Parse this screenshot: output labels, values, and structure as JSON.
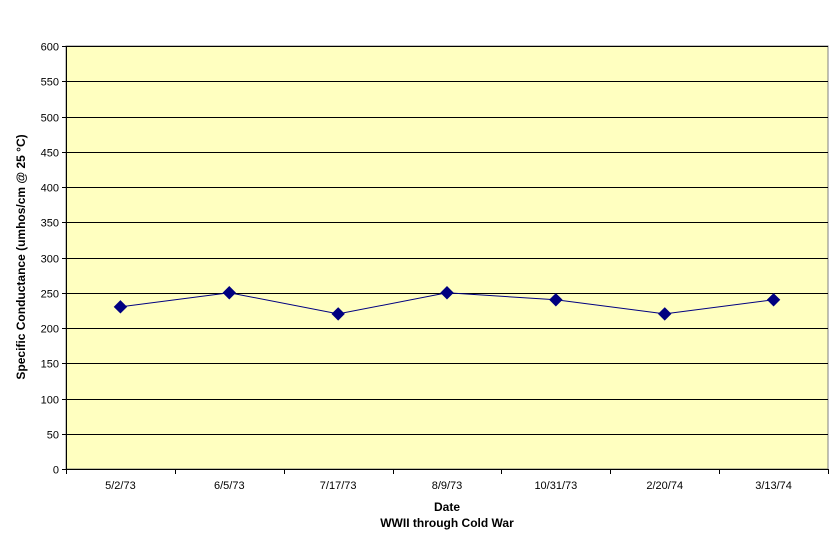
{
  "chart_data": {
    "type": "line",
    "categories": [
      "5/2/73",
      "6/5/73",
      "7/17/73",
      "8/9/73",
      "10/31/73",
      "2/20/74",
      "3/13/74"
    ],
    "series": [
      {
        "values": [
          230,
          250,
          220,
          250,
          240,
          220,
          240
        ]
      }
    ],
    "xlabel": "Date",
    "xsublabel": "WWII through Cold War",
    "ylabel": "Specific Conductance (umhos/cm @ 25 °C)",
    "ylim": [
      0,
      600
    ],
    "yticks": [
      0,
      50,
      100,
      150,
      200,
      250,
      300,
      350,
      400,
      450,
      500,
      550,
      600
    ],
    "grid": true,
    "legend": "none",
    "colors": {
      "plot_background": "#FFFFC0",
      "line": "#000080",
      "marker": "#000080",
      "grid": "#000000"
    }
  }
}
